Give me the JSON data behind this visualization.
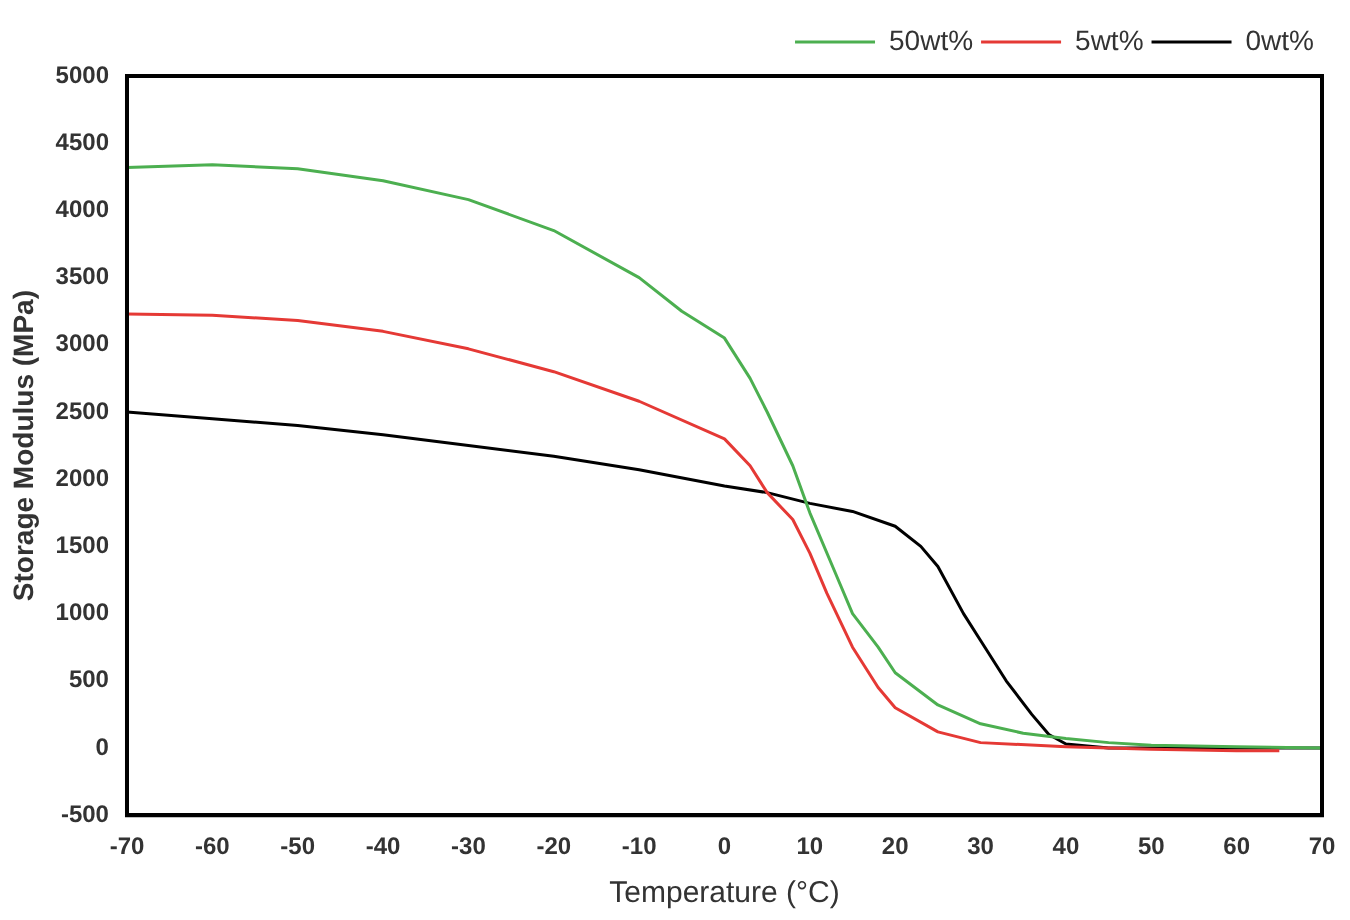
{
  "chart_data": {
    "type": "line",
    "xlabel": "Temperature (°C)",
    "ylabel": "Storage Modulus (MPa)",
    "xlim": [
      -70,
      70
    ],
    "xticks": [
      -70,
      -60,
      -50,
      -40,
      -30,
      -20,
      -10,
      0,
      10,
      20,
      30,
      40,
      50,
      60,
      70
    ],
    "ylim": [
      -500,
      5000
    ],
    "yticks": [
      -500,
      0,
      500,
      1000,
      1500,
      2000,
      2500,
      3000,
      3500,
      4000,
      4500,
      5000
    ],
    "grid": false,
    "legend": "top right",
    "marker": "none",
    "line_style": "solid",
    "series": [
      {
        "name": "50wt%",
        "color": "#4caf50",
        "x": [
          -70,
          -60,
          -50,
          -40,
          -30,
          -20,
          -10,
          -5,
          0,
          3,
          5,
          8,
          10,
          13,
          15,
          18,
          20,
          25,
          30,
          35,
          40,
          45,
          50,
          60,
          70
        ],
        "values": [
          4320,
          4340,
          4310,
          4220,
          4080,
          3850,
          3500,
          3250,
          3050,
          2750,
          2500,
          2100,
          1750,
          1300,
          1000,
          750,
          560,
          320,
          180,
          110,
          70,
          40,
          20,
          10,
          0
        ]
      },
      {
        "name": "5wt%",
        "color": "#e53935",
        "x": [
          -70,
          -60,
          -50,
          -40,
          -30,
          -20,
          -10,
          0,
          3,
          5,
          8,
          10,
          12,
          15,
          18,
          20,
          25,
          30,
          40,
          50,
          60,
          65
        ],
        "values": [
          3230,
          3220,
          3180,
          3100,
          2970,
          2800,
          2580,
          2300,
          2100,
          1900,
          1700,
          1450,
          1150,
          750,
          450,
          300,
          120,
          40,
          10,
          -10,
          -20,
          -20
        ]
      },
      {
        "name": "0wt%",
        "color": "#000000",
        "x": [
          -70,
          -60,
          -50,
          -40,
          -30,
          -20,
          -10,
          0,
          5,
          10,
          15,
          20,
          23,
          25,
          28,
          30,
          33,
          36,
          38,
          40,
          45,
          60,
          70
        ],
        "values": [
          2500,
          2450,
          2400,
          2330,
          2250,
          2170,
          2070,
          1950,
          1900,
          1820,
          1760,
          1650,
          1500,
          1350,
          1000,
          800,
          500,
          250,
          100,
          30,
          0,
          0,
          0
        ]
      }
    ]
  }
}
